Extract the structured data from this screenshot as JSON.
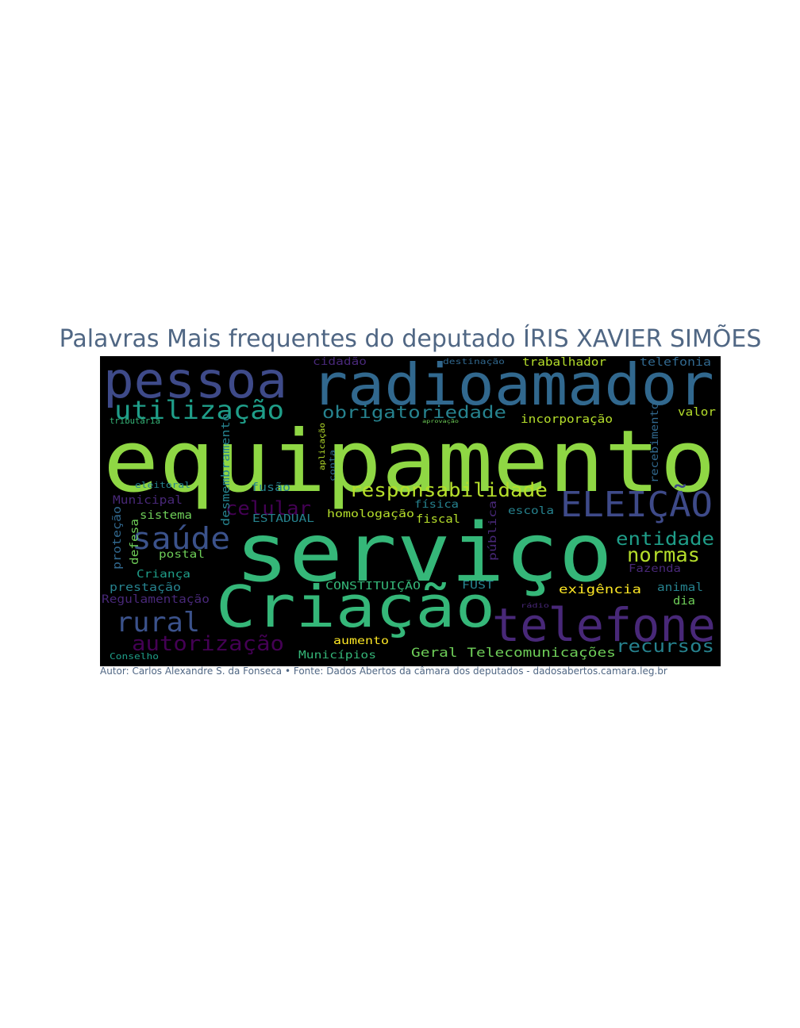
{
  "title": "Palavras Mais frequentes do deputado ÍRIS XAVIER SIMÕES",
  "footer": "Autor: Carlos Alexandre S. da Fonseca • Fonte: Dados Abertos da câmara dos deputados - dadosabertos.camara.leg.br",
  "colors": {
    "title": "#506784",
    "background": "#000000",
    "palette": [
      "#440154",
      "#472c7a",
      "#3b518b",
      "#2c718e",
      "#21908d",
      "#27ad81",
      "#5cc863",
      "#aadc32",
      "#fde725"
    ]
  },
  "words": [
    {
      "text": "equipamento",
      "color": "#8fd744"
    },
    {
      "text": "serviço",
      "color": "#35b779"
    },
    {
      "text": "radioamador",
      "color": "#31688e"
    },
    {
      "text": "pessoa",
      "color": "#3e4a89"
    },
    {
      "text": "Criação",
      "color": "#35b779"
    },
    {
      "text": "telefone",
      "color": "#482878"
    },
    {
      "text": "ELEIÇÃO",
      "color": "#3e4a89"
    },
    {
      "text": "utilização",
      "color": "#1f9e89"
    },
    {
      "text": "responsabilidade",
      "color": "#b5de2b"
    },
    {
      "text": "obrigatoriedade",
      "color": "#26828e"
    },
    {
      "text": "saúde",
      "color": "#3b528b"
    },
    {
      "text": "rural",
      "color": "#3b528b"
    },
    {
      "text": "autorização",
      "color": "#440154"
    },
    {
      "text": "celular",
      "color": "#440154"
    },
    {
      "text": "entidade",
      "color": "#1f9e89"
    },
    {
      "text": "normas",
      "color": "#b5de2b"
    },
    {
      "text": "recursos",
      "color": "#26828e"
    },
    {
      "text": "Geral Telecomunicações",
      "color": "#6ece58"
    },
    {
      "text": "incorporação",
      "color": "#b5de2b"
    },
    {
      "text": "trabalhador",
      "color": "#b5de2b"
    },
    {
      "text": "telefonia",
      "color": "#31688e"
    },
    {
      "text": "cidadão",
      "color": "#482878"
    },
    {
      "text": "destinação",
      "color": "#31688e"
    },
    {
      "text": "valor",
      "color": "#b5de2b"
    },
    {
      "text": "recebimento",
      "color": "#31688e"
    },
    {
      "text": "exigência",
      "color": "#fde725"
    },
    {
      "text": "animal",
      "color": "#26828e"
    },
    {
      "text": "dia",
      "color": "#6ece58"
    },
    {
      "text": "Fazenda",
      "color": "#482878"
    },
    {
      "text": "escola",
      "color": "#26828e"
    },
    {
      "text": "pública",
      "color": "#482878"
    },
    {
      "text": "física",
      "color": "#26828e"
    },
    {
      "text": "fiscal",
      "color": "#b5de2b"
    },
    {
      "text": "homologação",
      "color": "#b5de2b"
    },
    {
      "text": "CONSTITUIÇÃO",
      "color": "#35b779"
    },
    {
      "text": "FUST",
      "color": "#26828e"
    },
    {
      "text": "aumento",
      "color": "#fde725"
    },
    {
      "text": "Municípios",
      "color": "#35b779"
    },
    {
      "text": "ESTADUAL",
      "color": "#26828e"
    },
    {
      "text": "fusão",
      "color": "#26828e"
    },
    {
      "text": "sistema",
      "color": "#6ece58"
    },
    {
      "text": "Municipal",
      "color": "#482878"
    },
    {
      "text": "eleitoral",
      "color": "#26828e"
    },
    {
      "text": "tributária",
      "color": "#35b779"
    },
    {
      "text": "postal",
      "color": "#6ece58"
    },
    {
      "text": "Criança",
      "color": "#1f9e89"
    },
    {
      "text": "prestação",
      "color": "#26828e"
    },
    {
      "text": "Regulamentação",
      "color": "#482878"
    },
    {
      "text": "Conselho",
      "color": "#1f9e89"
    },
    {
      "text": "proteção",
      "color": "#31688e"
    },
    {
      "text": "defesa",
      "color": "#6ece58"
    },
    {
      "text": "desmembramento",
      "color": "#26828e"
    },
    {
      "text": "aplicação",
      "color": "#b5de2b"
    },
    {
      "text": "conta",
      "color": "#31688e"
    },
    {
      "text": "rádio",
      "color": "#482878"
    },
    {
      "text": "aprovação",
      "color": "#6ece58"
    }
  ]
}
